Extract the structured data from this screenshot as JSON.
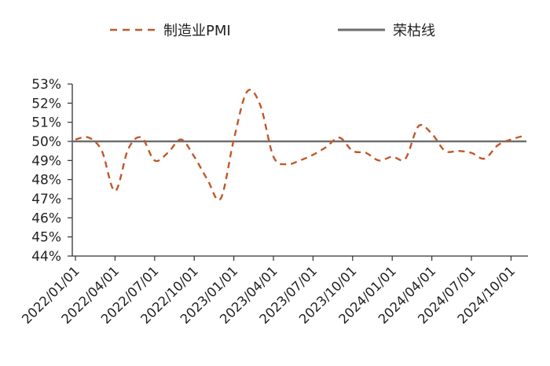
{
  "chart_data": {
    "type": "line",
    "title": "",
    "xlabel": "",
    "ylabel": "",
    "ylim": [
      44,
      53
    ],
    "y_tick_labels": [
      "44%",
      "45%",
      "46%",
      "47%",
      "48%",
      "49%",
      "50%",
      "51%",
      "52%",
      "53%"
    ],
    "y_ticks": [
      44,
      45,
      46,
      47,
      48,
      49,
      50,
      51,
      52,
      53
    ],
    "x_tick_labels": [
      "2022/01/01",
      "2022/04/01",
      "2022/07/01",
      "2022/10/01",
      "2023/01/01",
      "2023/04/01",
      "2023/07/01",
      "2023/10/01",
      "2024/01/01",
      "2024/04/01",
      "2024/07/01",
      "2024/10/01"
    ],
    "x": [
      "2022-01",
      "2022-02",
      "2022-03",
      "2022-04",
      "2022-05",
      "2022-06",
      "2022-07",
      "2022-08",
      "2022-09",
      "2022-10",
      "2022-11",
      "2022-12",
      "2023-01",
      "2023-02",
      "2023-03",
      "2023-04",
      "2023-05",
      "2023-06",
      "2023-07",
      "2023-08",
      "2023-09",
      "2023-10",
      "2023-11",
      "2023-12",
      "2024-01",
      "2024-02",
      "2024-03",
      "2024-04",
      "2024-05",
      "2024-06",
      "2024-07",
      "2024-08",
      "2024-09",
      "2024-10",
      "2024-11"
    ],
    "series": [
      {
        "name": "制造业PMI",
        "color": "#c0582a",
        "style": "dashed",
        "values": [
          50.1,
          50.2,
          49.5,
          47.4,
          49.6,
          50.2,
          49.0,
          49.4,
          50.1,
          49.2,
          48.0,
          47.0,
          50.1,
          52.6,
          51.9,
          49.2,
          48.8,
          49.0,
          49.3,
          49.7,
          50.2,
          49.5,
          49.4,
          49.0,
          49.2,
          49.1,
          50.8,
          50.4,
          49.5,
          49.5,
          49.4,
          49.1,
          49.8,
          50.1,
          50.3
        ]
      },
      {
        "name": "荣枯线",
        "color": "#6e6e6e",
        "style": "solid",
        "values": [
          50,
          50,
          50,
          50,
          50,
          50,
          50,
          50,
          50,
          50,
          50,
          50,
          50,
          50,
          50,
          50,
          50,
          50,
          50,
          50,
          50,
          50,
          50,
          50,
          50,
          50,
          50,
          50,
          50,
          50,
          50,
          50,
          50,
          50,
          50
        ]
      }
    ],
    "legend": {
      "placement": "top"
    },
    "grid": false
  }
}
